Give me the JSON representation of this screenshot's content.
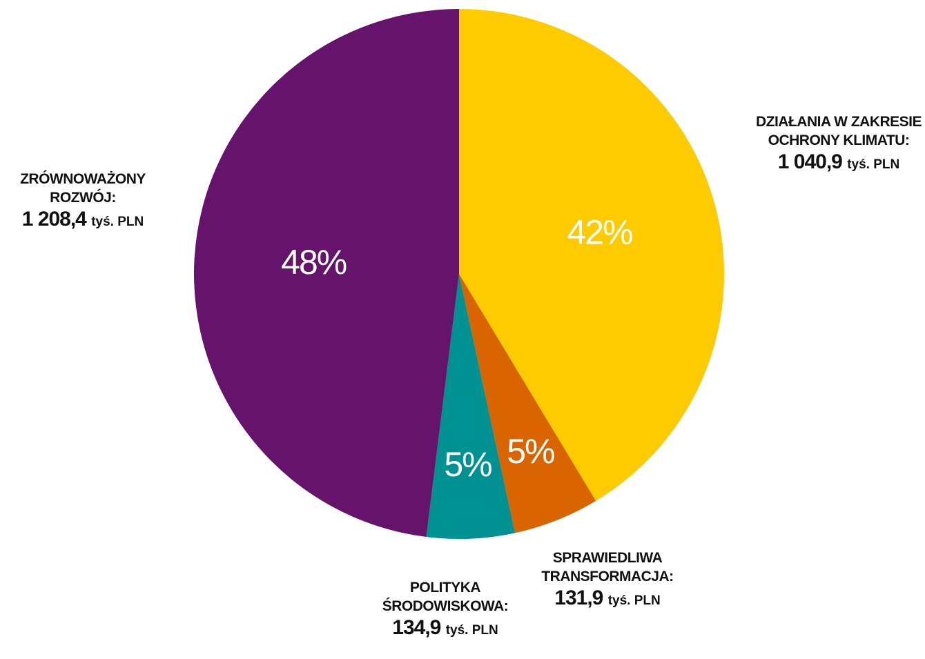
{
  "chart_data": {
    "type": "pie",
    "categories": [
      "DZIAŁANIA W ZAKRESIE OCHRONY KLIMATU:",
      "SPRAWIEDLIWA TRANSFORMACJA:",
      "POLITYKA ŚRODOWISKOWA:",
      "ZRÓWNOWAŻONY ROZWÓJ:"
    ],
    "values": [
      1040.9,
      131.9,
      134.9,
      1208.4
    ],
    "value_labels": [
      "1 040,9",
      "131,9",
      "134,9",
      "1 208,4"
    ],
    "unit": "tyś. PLN",
    "percent_labels": [
      "42%",
      "5%",
      "5%",
      "48%"
    ],
    "colors": [
      "#fecb00",
      "#d96400",
      "#009193",
      "#66146b"
    ]
  }
}
